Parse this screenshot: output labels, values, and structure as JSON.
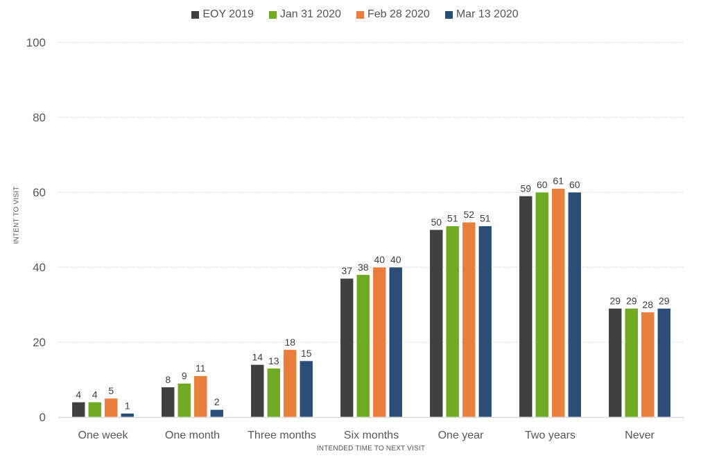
{
  "chart_data": {
    "type": "bar",
    "title": "",
    "xlabel": "INTENDED TIME TO NEXT VISIT",
    "ylabel": "INTENT TO VISIT",
    "ylim": [
      0,
      100
    ],
    "yticks": [
      0,
      20,
      40,
      60,
      80,
      100
    ],
    "grid": true,
    "legend_position": "top-center",
    "categories": [
      "One week",
      "One month",
      "Three months",
      "Six months",
      "One year",
      "Two years",
      "Never"
    ],
    "series": [
      {
        "name": "EOY 2019",
        "color": "#404040",
        "values": [
          4,
          8,
          14,
          37,
          50,
          59,
          29
        ]
      },
      {
        "name": "Jan 31 2020",
        "color": "#6faa22",
        "values": [
          4,
          9,
          13,
          38,
          51,
          60,
          29
        ]
      },
      {
        "name": "Feb 28 2020",
        "color": "#ea7e3d",
        "values": [
          5,
          11,
          18,
          40,
          52,
          61,
          28
        ]
      },
      {
        "name": "Mar 13 2020",
        "color": "#2b4e79",
        "values": [
          1,
          2,
          15,
          40,
          51,
          60,
          29
        ]
      }
    ]
  }
}
